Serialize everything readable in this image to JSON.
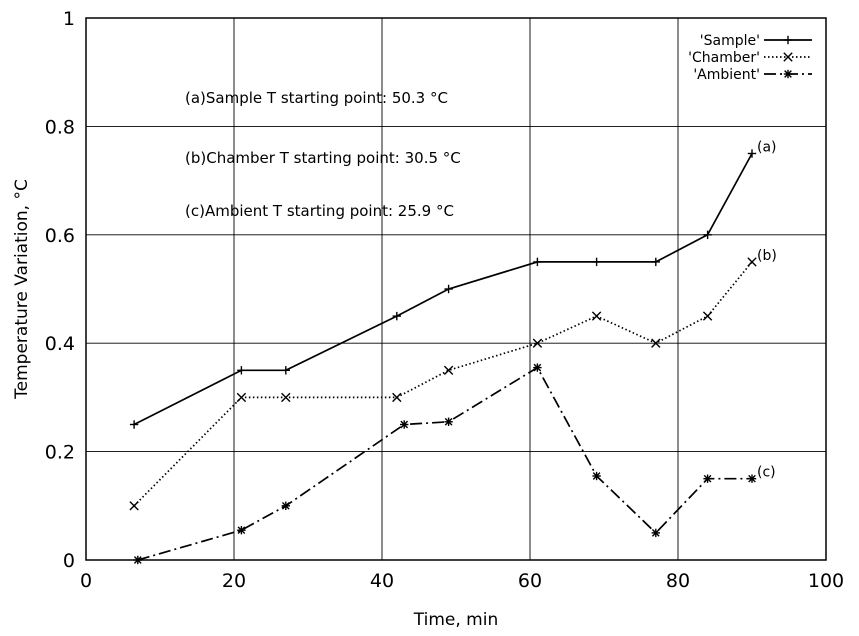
{
  "chart_data": {
    "type": "line",
    "title": "",
    "xlabel": "Time, min",
    "ylabel": "Temperature Variation, °C",
    "xlim": [
      0,
      100
    ],
    "ylim": [
      0,
      1
    ],
    "x_ticks": [
      "0",
      "20",
      "40",
      "60",
      "80",
      "100"
    ],
    "y_ticks": [
      "0",
      "0.2",
      "0.4",
      "0.6",
      "0.8",
      "1"
    ],
    "grid": true,
    "legend_position": "top-right",
    "series": [
      {
        "name": "'Sample'",
        "line_style": "solid",
        "marker": "plus",
        "end_label": "(a)",
        "x": [
          6.5,
          21,
          27,
          42,
          49,
          61,
          69,
          77,
          84,
          90
        ],
        "y": [
          0.25,
          0.35,
          0.35,
          0.45,
          0.5,
          0.55,
          0.55,
          0.55,
          0.6,
          0.75
        ]
      },
      {
        "name": "'Chamber'",
        "line_style": "dotted",
        "marker": "x",
        "end_label": "(b)",
        "x": [
          6.5,
          21,
          27,
          42,
          49,
          61,
          69,
          77,
          84,
          90
        ],
        "y": [
          0.1,
          0.3,
          0.3,
          0.3,
          0.35,
          0.4,
          0.45,
          0.4,
          0.45,
          0.55
        ]
      },
      {
        "name": "'Ambient'",
        "line_style": "dashdot",
        "marker": "star",
        "end_label": "(c)",
        "x": [
          7,
          21,
          27,
          43,
          49,
          61,
          69,
          77,
          84,
          90
        ],
        "y": [
          0.0,
          0.055,
          0.1,
          0.25,
          0.255,
          0.355,
          0.155,
          0.05,
          0.15,
          0.15
        ]
      }
    ],
    "annotations": [
      "(a)Sample T starting point: 50.3 °C",
      "(b)Chamber T starting point: 30.5 °C",
      "(c)Ambient T starting point: 25.9 °C"
    ],
    "colors": {
      "line": "#000000",
      "grid": "#000000",
      "background": "#ffffff"
    }
  }
}
